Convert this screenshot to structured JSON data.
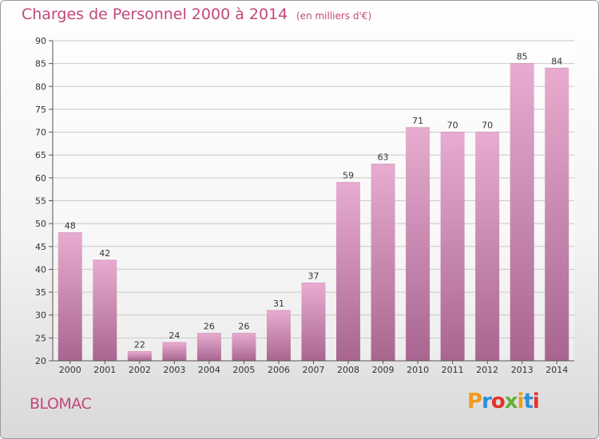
{
  "header": {
    "title": "Charges de Personnel 2000 à 2014",
    "subtitle": "(en milliers d'€)"
  },
  "footer": {
    "commune": "BLOMAC",
    "logo_text": "Proxiti"
  },
  "colors": {
    "title": "#c2477a",
    "bar_light": "#e6a9cc",
    "bar_dark": "#a86690",
    "grid": "#c8c8c8"
  },
  "chart_data": {
    "type": "bar",
    "title": "Charges de Personnel 2000 à 2014",
    "subtitle": "(en milliers d'€)",
    "xlabel": "",
    "ylabel": "",
    "categories": [
      "2000",
      "2001",
      "2002",
      "2003",
      "2004",
      "2005",
      "2006",
      "2007",
      "2008",
      "2009",
      "2010",
      "2011",
      "2012",
      "2013",
      "2014"
    ],
    "values": [
      48,
      42,
      22,
      24,
      26,
      26,
      31,
      37,
      59,
      63,
      71,
      70,
      70,
      85,
      84
    ],
    "ylim": [
      20,
      90
    ],
    "yticks": [
      20,
      25,
      30,
      35,
      40,
      45,
      50,
      55,
      60,
      65,
      70,
      75,
      80,
      85,
      90
    ],
    "grid": true,
    "data_labels": true
  }
}
